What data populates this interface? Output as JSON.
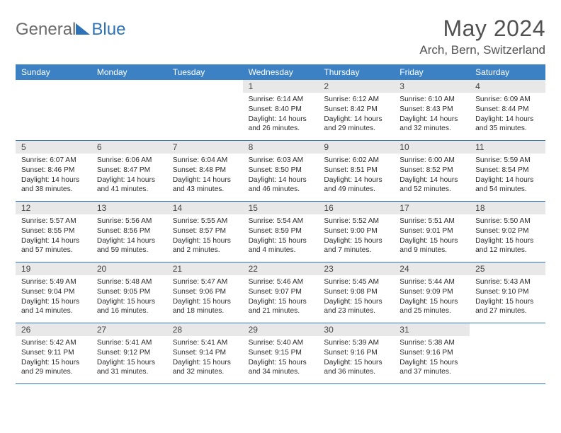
{
  "logo": {
    "general": "General",
    "blue": "Blue"
  },
  "title": "May 2024",
  "location": "Arch, Bern, Switzerland",
  "dayHeaders": [
    "Sunday",
    "Monday",
    "Tuesday",
    "Wednesday",
    "Thursday",
    "Friday",
    "Saturday"
  ],
  "colors": {
    "headerBlue": "#3b81c4",
    "borderBlue": "#2e72b8",
    "greyBar": "#e8e8e8",
    "text": "#2b2b2b"
  },
  "weeks": [
    [
      {
        "num": "",
        "lines": []
      },
      {
        "num": "",
        "lines": []
      },
      {
        "num": "",
        "lines": []
      },
      {
        "num": "1",
        "lines": [
          "Sunrise: 6:14 AM",
          "Sunset: 8:40 PM",
          "Daylight: 14 hours and 26 minutes."
        ]
      },
      {
        "num": "2",
        "lines": [
          "Sunrise: 6:12 AM",
          "Sunset: 8:42 PM",
          "Daylight: 14 hours and 29 minutes."
        ]
      },
      {
        "num": "3",
        "lines": [
          "Sunrise: 6:10 AM",
          "Sunset: 8:43 PM",
          "Daylight: 14 hours and 32 minutes."
        ]
      },
      {
        "num": "4",
        "lines": [
          "Sunrise: 6:09 AM",
          "Sunset: 8:44 PM",
          "Daylight: 14 hours and 35 minutes."
        ]
      }
    ],
    [
      {
        "num": "5",
        "lines": [
          "Sunrise: 6:07 AM",
          "Sunset: 8:46 PM",
          "Daylight: 14 hours and 38 minutes."
        ]
      },
      {
        "num": "6",
        "lines": [
          "Sunrise: 6:06 AM",
          "Sunset: 8:47 PM",
          "Daylight: 14 hours and 41 minutes."
        ]
      },
      {
        "num": "7",
        "lines": [
          "Sunrise: 6:04 AM",
          "Sunset: 8:48 PM",
          "Daylight: 14 hours and 43 minutes."
        ]
      },
      {
        "num": "8",
        "lines": [
          "Sunrise: 6:03 AM",
          "Sunset: 8:50 PM",
          "Daylight: 14 hours and 46 minutes."
        ]
      },
      {
        "num": "9",
        "lines": [
          "Sunrise: 6:02 AM",
          "Sunset: 8:51 PM",
          "Daylight: 14 hours and 49 minutes."
        ]
      },
      {
        "num": "10",
        "lines": [
          "Sunrise: 6:00 AM",
          "Sunset: 8:52 PM",
          "Daylight: 14 hours and 52 minutes."
        ]
      },
      {
        "num": "11",
        "lines": [
          "Sunrise: 5:59 AM",
          "Sunset: 8:54 PM",
          "Daylight: 14 hours and 54 minutes."
        ]
      }
    ],
    [
      {
        "num": "12",
        "lines": [
          "Sunrise: 5:57 AM",
          "Sunset: 8:55 PM",
          "Daylight: 14 hours and 57 minutes."
        ]
      },
      {
        "num": "13",
        "lines": [
          "Sunrise: 5:56 AM",
          "Sunset: 8:56 PM",
          "Daylight: 14 hours and 59 minutes."
        ]
      },
      {
        "num": "14",
        "lines": [
          "Sunrise: 5:55 AM",
          "Sunset: 8:57 PM",
          "Daylight: 15 hours and 2 minutes."
        ]
      },
      {
        "num": "15",
        "lines": [
          "Sunrise: 5:54 AM",
          "Sunset: 8:59 PM",
          "Daylight: 15 hours and 4 minutes."
        ]
      },
      {
        "num": "16",
        "lines": [
          "Sunrise: 5:52 AM",
          "Sunset: 9:00 PM",
          "Daylight: 15 hours and 7 minutes."
        ]
      },
      {
        "num": "17",
        "lines": [
          "Sunrise: 5:51 AM",
          "Sunset: 9:01 PM",
          "Daylight: 15 hours and 9 minutes."
        ]
      },
      {
        "num": "18",
        "lines": [
          "Sunrise: 5:50 AM",
          "Sunset: 9:02 PM",
          "Daylight: 15 hours and 12 minutes."
        ]
      }
    ],
    [
      {
        "num": "19",
        "lines": [
          "Sunrise: 5:49 AM",
          "Sunset: 9:04 PM",
          "Daylight: 15 hours and 14 minutes."
        ]
      },
      {
        "num": "20",
        "lines": [
          "Sunrise: 5:48 AM",
          "Sunset: 9:05 PM",
          "Daylight: 15 hours and 16 minutes."
        ]
      },
      {
        "num": "21",
        "lines": [
          "Sunrise: 5:47 AM",
          "Sunset: 9:06 PM",
          "Daylight: 15 hours and 18 minutes."
        ]
      },
      {
        "num": "22",
        "lines": [
          "Sunrise: 5:46 AM",
          "Sunset: 9:07 PM",
          "Daylight: 15 hours and 21 minutes."
        ]
      },
      {
        "num": "23",
        "lines": [
          "Sunrise: 5:45 AM",
          "Sunset: 9:08 PM",
          "Daylight: 15 hours and 23 minutes."
        ]
      },
      {
        "num": "24",
        "lines": [
          "Sunrise: 5:44 AM",
          "Sunset: 9:09 PM",
          "Daylight: 15 hours and 25 minutes."
        ]
      },
      {
        "num": "25",
        "lines": [
          "Sunrise: 5:43 AM",
          "Sunset: 9:10 PM",
          "Daylight: 15 hours and 27 minutes."
        ]
      }
    ],
    [
      {
        "num": "26",
        "lines": [
          "Sunrise: 5:42 AM",
          "Sunset: 9:11 PM",
          "Daylight: 15 hours and 29 minutes."
        ]
      },
      {
        "num": "27",
        "lines": [
          "Sunrise: 5:41 AM",
          "Sunset: 9:12 PM",
          "Daylight: 15 hours and 31 minutes."
        ]
      },
      {
        "num": "28",
        "lines": [
          "Sunrise: 5:41 AM",
          "Sunset: 9:14 PM",
          "Daylight: 15 hours and 32 minutes."
        ]
      },
      {
        "num": "29",
        "lines": [
          "Sunrise: 5:40 AM",
          "Sunset: 9:15 PM",
          "Daylight: 15 hours and 34 minutes."
        ]
      },
      {
        "num": "30",
        "lines": [
          "Sunrise: 5:39 AM",
          "Sunset: 9:16 PM",
          "Daylight: 15 hours and 36 minutes."
        ]
      },
      {
        "num": "31",
        "lines": [
          "Sunrise: 5:38 AM",
          "Sunset: 9:16 PM",
          "Daylight: 15 hours and 37 minutes."
        ]
      },
      {
        "num": "",
        "lines": []
      }
    ]
  ]
}
